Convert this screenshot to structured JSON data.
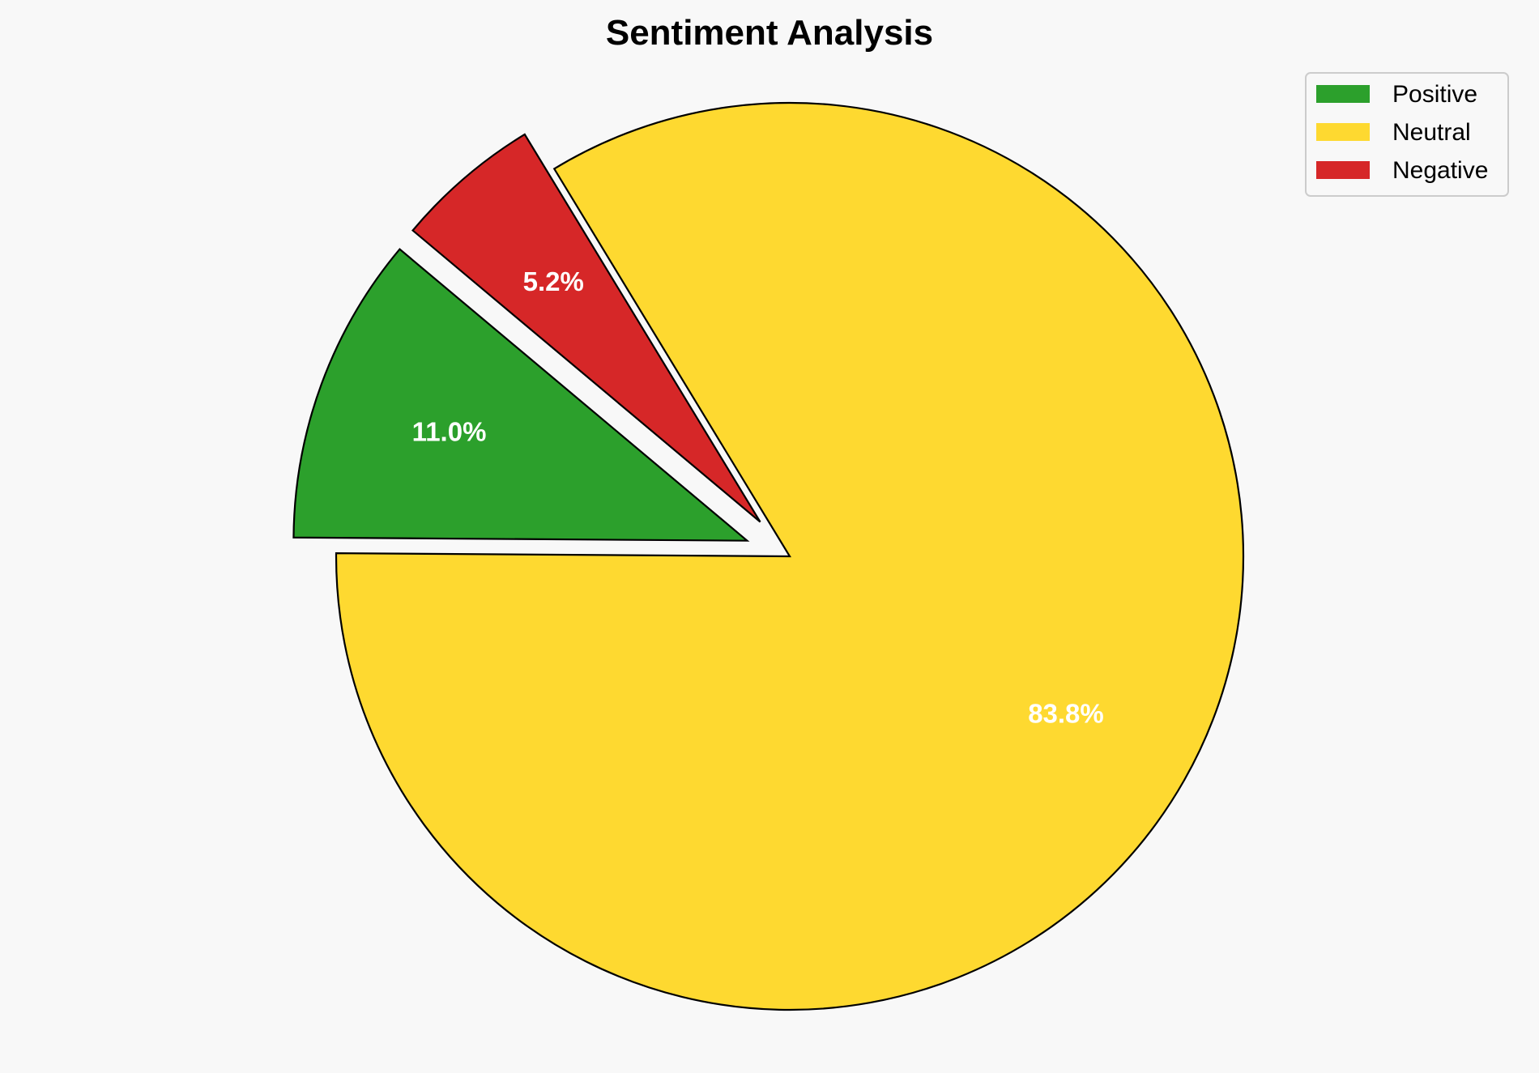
{
  "chart_data": {
    "type": "pie",
    "title": "Sentiment Analysis",
    "labels": [
      "Positive",
      "Neutral",
      "Negative"
    ],
    "values": [
      11.0,
      83.8,
      5.2
    ],
    "percent_labels": [
      "11.0%",
      "83.8%",
      "5.2%"
    ],
    "colors": [
      "#2ca02c",
      "#fed930",
      "#d62728"
    ],
    "explode": [
      0.1,
      0,
      0.1
    ],
    "start_angle_deg": 140,
    "direction": "counterclockwise",
    "legend_position": "top-right"
  }
}
